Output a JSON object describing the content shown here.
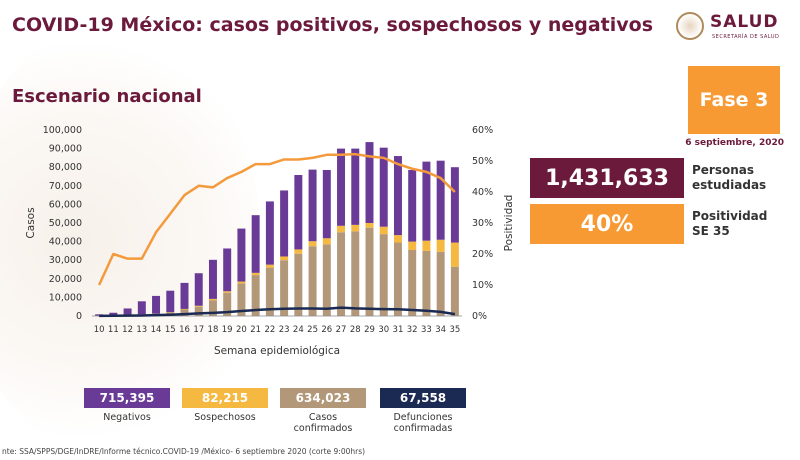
{
  "header": {
    "title": "COVID-19 México: casos positivos, sospechosos y negativos",
    "subtitle": "Escenario nacional",
    "logo_text": "SALUD",
    "logo_sub": "SECRETARÍA DE SALUD"
  },
  "phase": {
    "label": "Fase 3",
    "date": "6 septiembre, 2020",
    "color": "#f79a33"
  },
  "stats": {
    "persons_value": "1,431,633",
    "persons_label_1": "Personas",
    "persons_label_2": "estudiadas",
    "positivity_value": "40%",
    "positivity_label_1": "Positividad",
    "positivity_label_2": "SE 35"
  },
  "legend": [
    {
      "value": "715,395",
      "label_1": "Negativos",
      "label_2": "",
      "color": "#6a3a97"
    },
    {
      "value": "82,215",
      "label_1": "Sospechosos",
      "label_2": "",
      "color": "#f5b841"
    },
    {
      "value": "634,023",
      "label_1": "Casos",
      "label_2": "confirmados",
      "color": "#b29779"
    },
    {
      "value": "67,558",
      "label_1": "Defunciones",
      "label_2": "confirmadas",
      "color": "#1b2a52"
    }
  ],
  "footer": "nte: SSA/SPPS/DGE/InDRE/Informe técnico.COVID-19 /México- 6 septiembre 2020 (corte 9:00hrs)",
  "chart_data": {
    "type": "bar",
    "stacked": true,
    "categories": [
      "10",
      "11",
      "12",
      "13",
      "14",
      "15",
      "16",
      "17",
      "18",
      "19",
      "20",
      "21",
      "22",
      "23",
      "24",
      "25",
      "26",
      "27",
      "28",
      "29",
      "30",
      "31",
      "32",
      "33",
      "34",
      "35"
    ],
    "series": [
      {
        "name": "Casos confirmados",
        "color": "#b29779",
        "values": [
          100,
          200,
          500,
          800,
          1200,
          1900,
          3500,
          5000,
          8500,
          12500,
          17500,
          22000,
          26000,
          30000,
          33500,
          37500,
          38500,
          45000,
          45500,
          47500,
          44000,
          39500,
          35500,
          35000,
          34500,
          26500
        ]
      },
      {
        "name": "Sospechosos",
        "color": "#f5b841",
        "values": [
          0,
          50,
          50,
          100,
          100,
          200,
          300,
          500,
          700,
          800,
          1000,
          1200,
          1600,
          2000,
          2300,
          2700,
          3300,
          3500,
          3500,
          2500,
          4000,
          4000,
          4500,
          5500,
          6500,
          13000
        ]
      },
      {
        "name": "Negativos",
        "color": "#6a3a97",
        "values": [
          800,
          1500,
          3500,
          7000,
          9500,
          11500,
          14000,
          17500,
          21000,
          23000,
          28500,
          31000,
          34000,
          35500,
          40000,
          38500,
          36700,
          41500,
          41000,
          43500,
          42500,
          42500,
          38500,
          42500,
          42500,
          40500
        ]
      },
      {
        "name": "Defunciones confirmadas",
        "color": "#1b2a52",
        "values": [
          100,
          150,
          200,
          300,
          500,
          700,
          1000,
          1400,
          1700,
          2100,
          2700,
          3200,
          3600,
          3900,
          4000,
          4000,
          3900,
          4500,
          4100,
          3900,
          3700,
          3600,
          3200,
          2800,
          2200,
          1000
        ]
      }
    ],
    "positivity": {
      "name": "Positividad",
      "color": "#f39a3d",
      "values": [
        10,
        20,
        18.5,
        18.5,
        27,
        33,
        39,
        42,
        41.5,
        44.5,
        46.5,
        49,
        49,
        50.5,
        50.5,
        51,
        52,
        52,
        52.2,
        51.5,
        51,
        49,
        47.5,
        46.5,
        44.5,
        40
      ]
    },
    "xlabel": "Semana epidemiológica",
    "ylabel": "Casos",
    "y2label": "Positividad",
    "ylim": [
      0,
      100000
    ],
    "y2lim": [
      0,
      60
    ],
    "yticks": [
      "0",
      "10,000",
      "20,000",
      "30,000",
      "40,000",
      "50,000",
      "60,000",
      "70,000",
      "80,000",
      "90,000",
      "100,000"
    ],
    "y2ticks": [
      "0%",
      "10%",
      "20%",
      "30%",
      "40%",
      "50%",
      "60%"
    ]
  }
}
